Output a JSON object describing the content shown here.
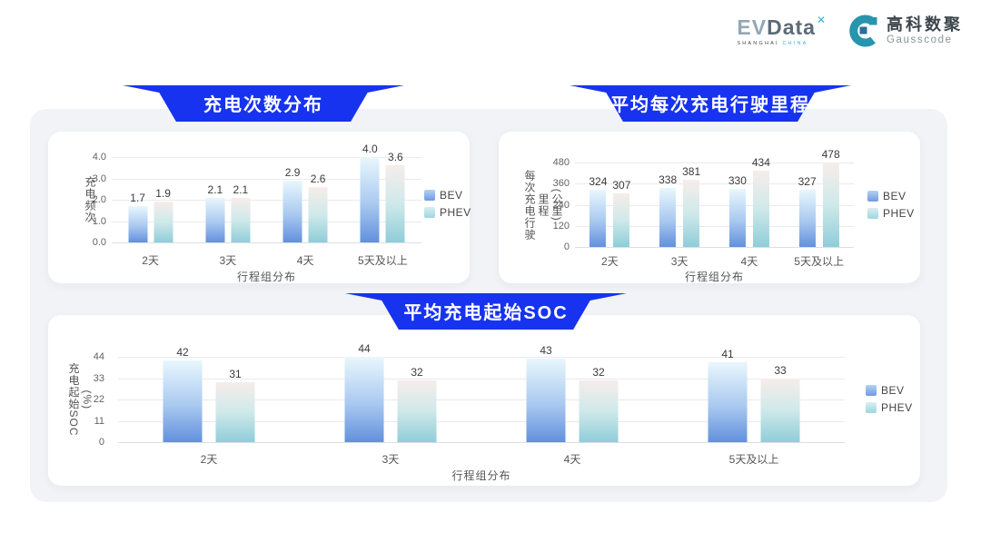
{
  "logo": {
    "evdata_ev": "EV",
    "evdata_data": "Data",
    "evdata_sup": "✕",
    "evdata_sub_left": "SHANGHAI",
    "evdata_sub_right": "CHINA",
    "gausscode_cn": "高科数聚",
    "gausscode_en": "Gausscode"
  },
  "colors": {
    "banner_blue": "#1733ef",
    "panel_bg": "#f2f3f6",
    "bev_top": "#e9f7fd",
    "bev_mid": "#a9c9f0",
    "bev_bottom": "#6290dd",
    "phev_top": "#f6edea",
    "phev_mid": "#cfe9ea",
    "phev_bottom": "#8fcdd9",
    "accent_teal": "#2795ae"
  },
  "chart_data": [
    {
      "type": "bar",
      "title": "充电次数分布",
      "xlabel": "行程组分布",
      "ylabel": "充电频次",
      "ylabel2": "",
      "categories": [
        "2天",
        "3天",
        "4天",
        "5天及以上"
      ],
      "series": [
        {
          "name": "BEV",
          "values": [
            1.7,
            2.1,
            2.9,
            4.0
          ],
          "labels": [
            "1.7",
            "2.1",
            "2.9",
            "4.0"
          ]
        },
        {
          "name": "PHEV",
          "values": [
            1.9,
            2.1,
            2.6,
            3.6
          ],
          "labels": [
            "1.9",
            "2.1",
            "2.6",
            "3.6"
          ]
        }
      ],
      "yticks": [
        0,
        1,
        2,
        3,
        4
      ],
      "ytick_labels": [
        "0.0",
        "1.0",
        "2.0",
        "3.0",
        "4.0"
      ],
      "ylim": [
        0,
        4
      ],
      "grid": true,
      "legend_position": "right"
    },
    {
      "type": "bar",
      "title": "平均每次充电行驶里程",
      "xlabel": "行程组分布",
      "ylabel": "每次充电行驶里程",
      "ylabel2": "(公里)",
      "categories": [
        "2天",
        "3天",
        "4天",
        "5天及以上"
      ],
      "series": [
        {
          "name": "BEV",
          "values": [
            324,
            338,
            330,
            327
          ],
          "labels": [
            "324",
            "338",
            "330",
            "327"
          ]
        },
        {
          "name": "PHEV",
          "values": [
            307,
            381,
            434,
            478
          ],
          "labels": [
            "307",
            "381",
            "434",
            "478"
          ]
        }
      ],
      "yticks": [
        0,
        120,
        240,
        360,
        480
      ],
      "ytick_labels": [
        "0",
        "120",
        "240",
        "360",
        "480"
      ],
      "ylim": [
        0,
        480
      ],
      "grid": true,
      "legend_position": "right"
    },
    {
      "type": "bar",
      "title": "平均充电起始SOC",
      "xlabel": "行程组分布",
      "ylabel": "充电起始SOC",
      "ylabel2": "(%)",
      "categories": [
        "2天",
        "3天",
        "4天",
        "5天及以上"
      ],
      "series": [
        {
          "name": "BEV",
          "values": [
            42,
            44,
            43,
            41
          ],
          "labels": [
            "42",
            "44",
            "43",
            "41"
          ]
        },
        {
          "name": "PHEV",
          "values": [
            31,
            32,
            32,
            33
          ],
          "labels": [
            "31",
            "32",
            "32",
            "33"
          ]
        }
      ],
      "yticks": [
        0,
        11,
        22,
        33,
        44
      ],
      "ytick_labels": [
        "0",
        "11",
        "22",
        "33",
        "44"
      ],
      "ylim": [
        0,
        44
      ],
      "grid": true,
      "legend_position": "right"
    }
  ]
}
